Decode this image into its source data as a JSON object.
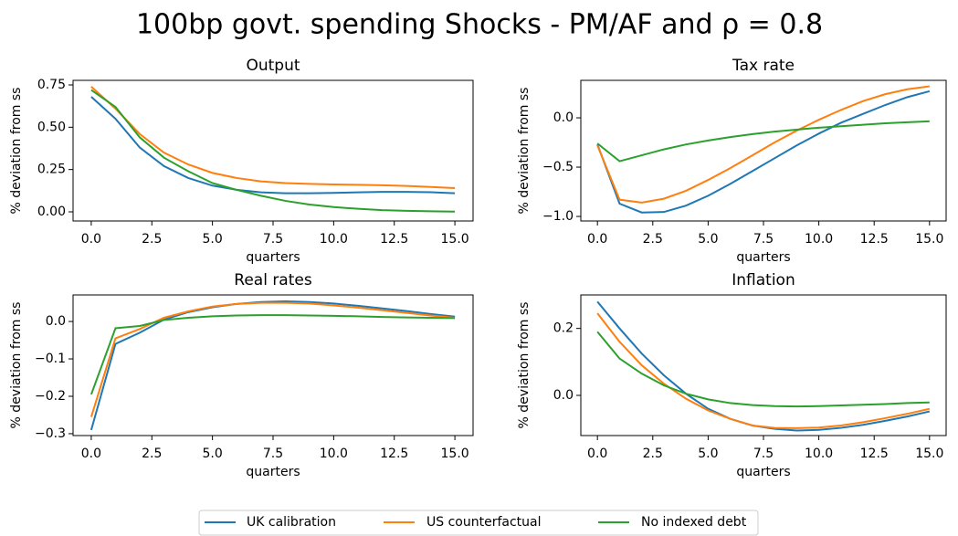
{
  "title": "100bp govt. spending Shocks - PM/AF and ρ =  0.8",
  "legend": {
    "loc": "lower center",
    "entries": [
      {
        "name": "UK calibration",
        "color": "#1f77b4"
      },
      {
        "name": "US counterfactual",
        "color": "#ff7f0e"
      },
      {
        "name": "No indexed debt",
        "color": "#2ca02c"
      }
    ]
  },
  "chart_data": [
    {
      "type": "line",
      "title": "Output",
      "xlabel": "quarters",
      "ylabel": "% deviation from ss",
      "x": [
        0,
        1,
        2,
        3,
        4,
        5,
        6,
        7,
        8,
        9,
        10,
        11,
        12,
        13,
        14,
        15
      ],
      "xlim": [
        -0.75,
        15.75
      ],
      "xticks": [
        {
          "value": 0,
          "label": "0.0"
        },
        {
          "value": 2.5,
          "label": "2.5"
        },
        {
          "value": 5,
          "label": "5.0"
        },
        {
          "value": 7.5,
          "label": "7.5"
        },
        {
          "value": 10,
          "label": "10.0"
        },
        {
          "value": 12.5,
          "label": "12.5"
        },
        {
          "value": 15,
          "label": "15.0"
        }
      ],
      "ylim": [
        -0.054,
        0.777
      ],
      "yticks": [
        {
          "value": 0,
          "label": "0.00"
        },
        {
          "value": 0.25,
          "label": "0.25"
        },
        {
          "value": 0.5,
          "label": "0.50"
        },
        {
          "value": 0.75,
          "label": "0.75"
        }
      ],
      "series": [
        {
          "values": [
            0.68,
            0.55,
            0.38,
            0.27,
            0.2,
            0.155,
            0.13,
            0.115,
            0.11,
            0.11,
            0.112,
            0.115,
            0.118,
            0.118,
            0.116,
            0.11
          ]
        },
        {
          "values": [
            0.74,
            0.61,
            0.46,
            0.35,
            0.28,
            0.23,
            0.2,
            0.18,
            0.17,
            0.165,
            0.162,
            0.16,
            0.157,
            0.153,
            0.147,
            0.14
          ]
        },
        {
          "values": [
            0.72,
            0.62,
            0.44,
            0.32,
            0.24,
            0.17,
            0.13,
            0.095,
            0.065,
            0.043,
            0.028,
            0.018,
            0.01,
            0.006,
            0.003,
            0.001
          ]
        }
      ]
    },
    {
      "type": "line",
      "title": "Tax rate",
      "xlabel": "quarters",
      "ylabel": "% deviation from ss",
      "x": [
        0,
        1,
        2,
        3,
        4,
        5,
        6,
        7,
        8,
        9,
        10,
        11,
        12,
        13,
        14,
        15
      ],
      "xlim": [
        -0.75,
        15.75
      ],
      "xticks": [
        {
          "value": 0,
          "label": "0.0"
        },
        {
          "value": 2.5,
          "label": "2.5"
        },
        {
          "value": 5,
          "label": "5.0"
        },
        {
          "value": 7.5,
          "label": "7.5"
        },
        {
          "value": 10,
          "label": "10.0"
        },
        {
          "value": 12.5,
          "label": "12.5"
        },
        {
          "value": 15,
          "label": "15.0"
        }
      ],
      "ylim": [
        -1.046,
        0.38
      ],
      "yticks": [
        {
          "value": -1,
          "label": "−1.0"
        },
        {
          "value": -0.5,
          "label": "−0.5"
        },
        {
          "value": 0,
          "label": "0.0"
        }
      ],
      "series": [
        {
          "values": [
            -0.27,
            -0.87,
            -0.96,
            -0.955,
            -0.89,
            -0.79,
            -0.67,
            -0.54,
            -0.41,
            -0.28,
            -0.16,
            -0.05,
            0.04,
            0.13,
            0.21,
            0.27
          ]
        },
        {
          "values": [
            -0.28,
            -0.83,
            -0.86,
            -0.82,
            -0.74,
            -0.63,
            -0.51,
            -0.38,
            -0.25,
            -0.13,
            -0.02,
            0.08,
            0.17,
            0.24,
            0.29,
            0.32
          ]
        },
        {
          "values": [
            -0.26,
            -0.44,
            -0.38,
            -0.32,
            -0.27,
            -0.23,
            -0.195,
            -0.165,
            -0.14,
            -0.12,
            -0.1,
            -0.085,
            -0.07,
            -0.055,
            -0.045,
            -0.035
          ]
        }
      ]
    },
    {
      "type": "line",
      "title": "Real rates",
      "xlabel": "quarters",
      "ylabel": "% deviation from ss",
      "x": [
        0,
        1,
        2,
        3,
        4,
        5,
        6,
        7,
        8,
        9,
        10,
        11,
        12,
        13,
        14,
        15
      ],
      "xlim": [
        -0.75,
        15.75
      ],
      "xticks": [
        {
          "value": 0,
          "label": "0.0"
        },
        {
          "value": 2.5,
          "label": "2.5"
        },
        {
          "value": 5,
          "label": "5.0"
        },
        {
          "value": 7.5,
          "label": "7.5"
        },
        {
          "value": 10,
          "label": "10.0"
        },
        {
          "value": 12.5,
          "label": "12.5"
        },
        {
          "value": 15,
          "label": "15.0"
        }
      ],
      "ylim": [
        -0.305,
        0.071
      ],
      "yticks": [
        {
          "value": -0.3,
          "label": "−0.3"
        },
        {
          "value": -0.2,
          "label": "−0.2"
        },
        {
          "value": -0.1,
          "label": "−0.1"
        },
        {
          "value": 0,
          "label": "0.0"
        }
      ],
      "series": [
        {
          "values": [
            -0.29,
            -0.06,
            -0.03,
            0.005,
            0.025,
            0.038,
            0.047,
            0.052,
            0.054,
            0.052,
            0.048,
            0.042,
            0.035,
            0.028,
            0.02,
            0.013
          ]
        },
        {
          "values": [
            -0.255,
            -0.045,
            -0.02,
            0.01,
            0.027,
            0.04,
            0.047,
            0.05,
            0.05,
            0.048,
            0.043,
            0.037,
            0.03,
            0.023,
            0.016,
            0.01
          ]
        },
        {
          "values": [
            -0.195,
            -0.018,
            -0.012,
            0.004,
            0.01,
            0.014,
            0.016,
            0.017,
            0.017,
            0.016,
            0.015,
            0.014,
            0.012,
            0.011,
            0.01,
            0.009
          ]
        }
      ]
    },
    {
      "type": "line",
      "title": "Inflation",
      "xlabel": "quarters",
      "ylabel": "% deviation from ss",
      "x": [
        0,
        1,
        2,
        3,
        4,
        5,
        6,
        7,
        8,
        9,
        10,
        11,
        12,
        13,
        14,
        15
      ],
      "xlim": [
        -0.75,
        15.75
      ],
      "xticks": [
        {
          "value": 0,
          "label": "0.0"
        },
        {
          "value": 2.5,
          "label": "2.5"
        },
        {
          "value": 5,
          "label": "5.0"
        },
        {
          "value": 7.5,
          "label": "7.5"
        },
        {
          "value": 10,
          "label": "10.0"
        },
        {
          "value": 12.5,
          "label": "12.5"
        },
        {
          "value": 15,
          "label": "15.0"
        }
      ],
      "ylim": [
        -0.12,
        0.3
      ],
      "yticks": [
        {
          "value": 0,
          "label": "0.0"
        },
        {
          "value": 0.2,
          "label": "0.2"
        }
      ],
      "series": [
        {
          "values": [
            0.28,
            0.2,
            0.125,
            0.06,
            0.005,
            -0.04,
            -0.07,
            -0.09,
            -0.1,
            -0.105,
            -0.103,
            -0.097,
            -0.088,
            -0.076,
            -0.063,
            -0.048
          ]
        },
        {
          "values": [
            0.245,
            0.16,
            0.09,
            0.035,
            -0.01,
            -0.045,
            -0.07,
            -0.09,
            -0.097,
            -0.098,
            -0.096,
            -0.09,
            -0.08,
            -0.068,
            -0.055,
            -0.04
          ]
        },
        {
          "values": [
            0.19,
            0.11,
            0.065,
            0.03,
            0.005,
            -0.012,
            -0.023,
            -0.029,
            -0.032,
            -0.033,
            -0.032,
            -0.03,
            -0.028,
            -0.026,
            -0.023,
            -0.021
          ]
        }
      ]
    }
  ]
}
